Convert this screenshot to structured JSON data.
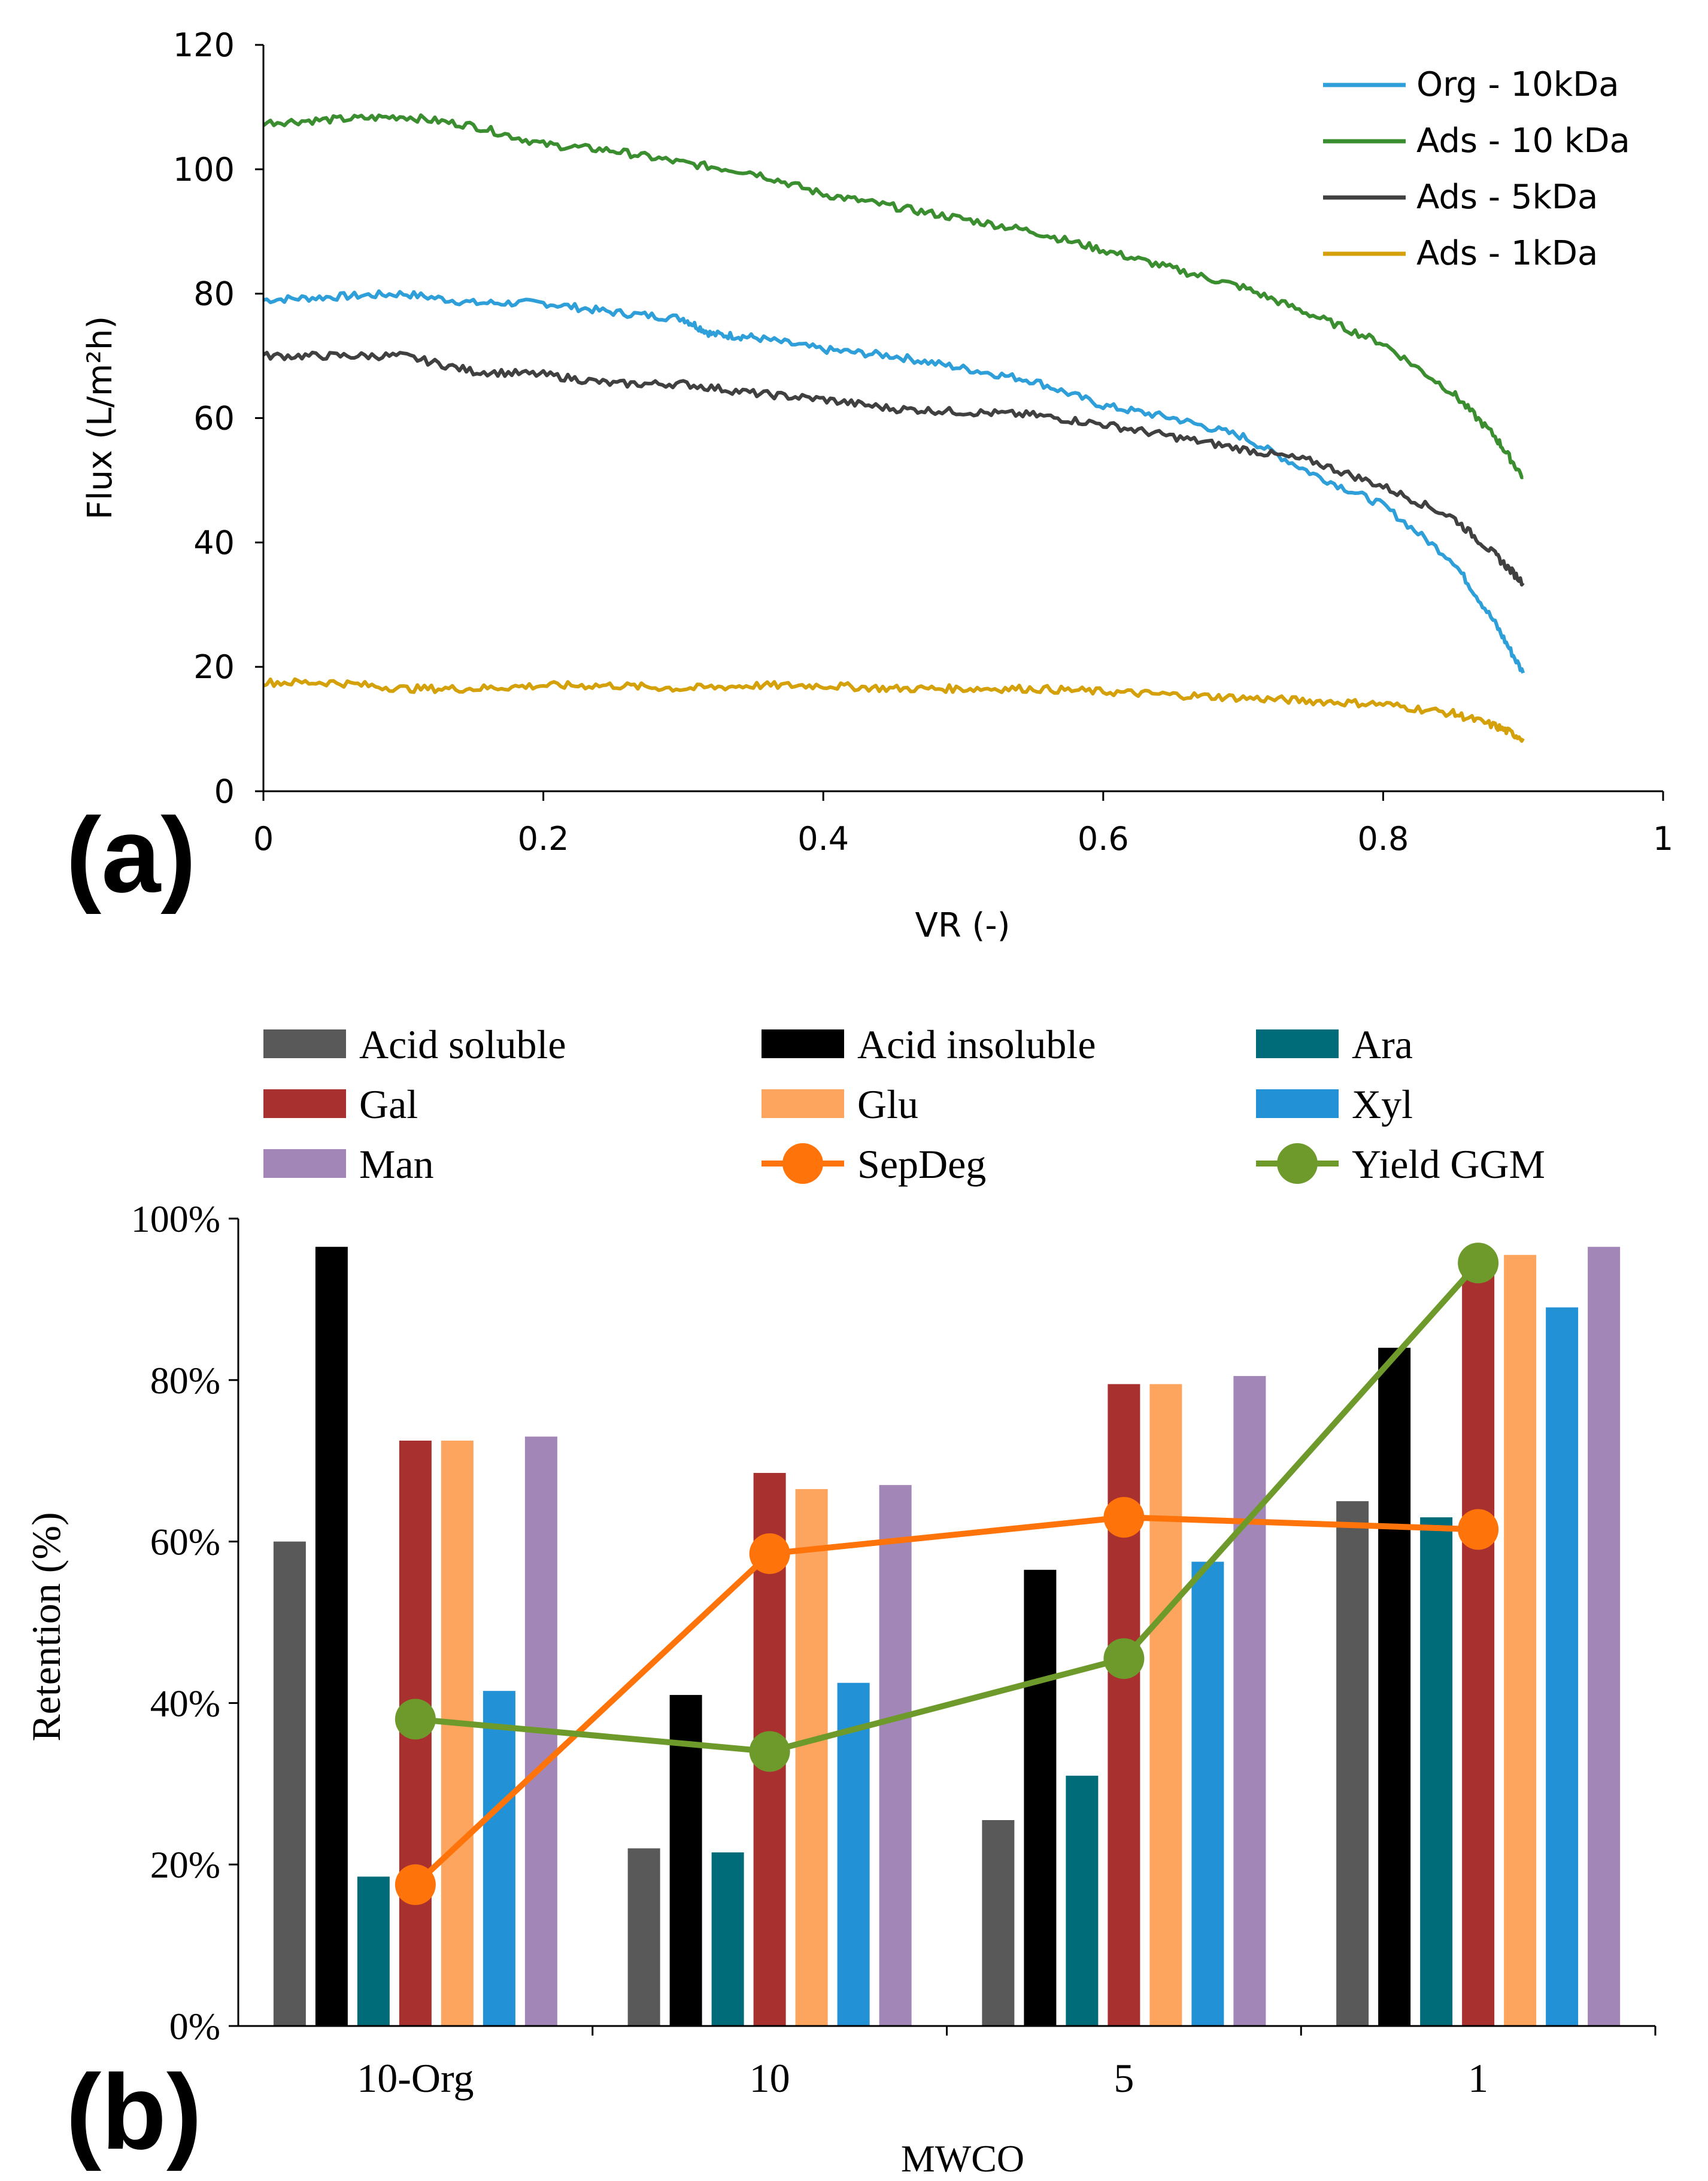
{
  "chart_data": [
    {
      "type": "line",
      "panel_label": "(a)",
      "title": "",
      "xlabel": "VR (-)",
      "ylabel": "Flux (L/m²h)",
      "xlim": [
        0,
        1
      ],
      "ylim": [
        0,
        120
      ],
      "xticks": [
        "0",
        "0.2",
        "0.4",
        "0.6",
        "0.8",
        "1"
      ],
      "yticks": [
        "0",
        "20",
        "40",
        "60",
        "80",
        "100",
        "120"
      ],
      "legend_position": "top-right",
      "grid": false,
      "series": [
        {
          "name": "Org - 10kDa",
          "color": "#2E9FD9",
          "x": [
            0,
            0.05,
            0.1,
            0.15,
            0.2,
            0.25,
            0.3,
            0.32,
            0.35,
            0.4,
            0.45,
            0.5,
            0.55,
            0.6,
            0.65,
            0.7,
            0.75,
            0.8,
            0.85,
            0.88,
            0.9
          ],
          "y": [
            79,
            79.5,
            80,
            78.5,
            78.5,
            77,
            76,
            73.5,
            73,
            71,
            70,
            68,
            66,
            62,
            60,
            57,
            51,
            46,
            37,
            27,
            19
          ]
        },
        {
          "name": "Ads - 10 kDa",
          "color": "#3B8E2F",
          "x": [
            0,
            0.05,
            0.1,
            0.15,
            0.2,
            0.25,
            0.3,
            0.35,
            0.4,
            0.45,
            0.5,
            0.55,
            0.6,
            0.65,
            0.7,
            0.75,
            0.8,
            0.85,
            0.88,
            0.9
          ],
          "y": [
            107.5,
            108,
            108.5,
            107,
            104,
            103,
            101,
            99.5,
            96,
            94,
            92,
            90,
            87,
            84,
            81,
            76.5,
            72,
            64,
            57,
            50.5
          ]
        },
        {
          "name": "Ads - 5kDa",
          "color": "#404040",
          "x": [
            0,
            0.05,
            0.1,
            0.15,
            0.2,
            0.25,
            0.3,
            0.35,
            0.4,
            0.45,
            0.5,
            0.55,
            0.6,
            0.65,
            0.7,
            0.75,
            0.8,
            0.85,
            0.88,
            0.9
          ],
          "y": [
            70,
            70,
            70,
            67.5,
            67,
            65.5,
            65.5,
            64,
            63,
            61.5,
            61,
            60.5,
            59,
            57,
            55,
            53,
            49,
            44,
            38,
            33.5
          ]
        },
        {
          "name": "Ads - 1kDa",
          "color": "#D4A10A",
          "x": [
            0,
            0.05,
            0.1,
            0.15,
            0.2,
            0.25,
            0.3,
            0.35,
            0.4,
            0.45,
            0.5,
            0.55,
            0.6,
            0.65,
            0.7,
            0.75,
            0.8,
            0.85,
            0.88,
            0.9
          ],
          "y": [
            17.5,
            17.5,
            16.5,
            16.5,
            17,
            17,
            16.5,
            17,
            17,
            16.5,
            16.5,
            16.5,
            16,
            15.5,
            15,
            14.5,
            14,
            12.5,
            10.5,
            8.5
          ]
        }
      ]
    },
    {
      "type": "bar",
      "panel_label": "(b)",
      "title": "",
      "xlabel": "MWCO",
      "ylabel": "Retention (%)",
      "ylim": [
        0,
        100
      ],
      "yticks": [
        "0%",
        "20%",
        "40%",
        "60%",
        "80%",
        "100%"
      ],
      "categories": [
        "10-Org",
        "10",
        "5",
        "1"
      ],
      "legend_position": "top",
      "grid": false,
      "series": [
        {
          "name": "Acid soluble",
          "color": "#595959",
          "values": [
            60,
            22,
            25.5,
            65
          ]
        },
        {
          "name": "Acid insoluble",
          "color": "#000000",
          "values": [
            96.5,
            41,
            56.5,
            84
          ]
        },
        {
          "name": "Ara",
          "color": "#006C7A",
          "values": [
            18.5,
            21.5,
            31,
            63
          ]
        },
        {
          "name": "Gal",
          "color": "#A8302F",
          "values": [
            72.5,
            68.5,
            79.5,
            94
          ]
        },
        {
          "name": "Glu",
          "color": "#FDA55E",
          "values": [
            72.5,
            66.5,
            79.5,
            95.5
          ]
        },
        {
          "name": "Xyl",
          "color": "#2391D5",
          "values": [
            41.5,
            42.5,
            57.5,
            89
          ]
        },
        {
          "name": "Man",
          "color": "#A286B8",
          "values": [
            73,
            67,
            80.5,
            96.5
          ]
        }
      ],
      "lines": [
        {
          "name": "SepDeg",
          "color": "#FF740A",
          "values": [
            17.5,
            58.5,
            63,
            61.5
          ]
        },
        {
          "name": "Yield GGM",
          "color": "#6E9A2C",
          "values": [
            38,
            34,
            45.5,
            94.5
          ]
        }
      ]
    }
  ]
}
